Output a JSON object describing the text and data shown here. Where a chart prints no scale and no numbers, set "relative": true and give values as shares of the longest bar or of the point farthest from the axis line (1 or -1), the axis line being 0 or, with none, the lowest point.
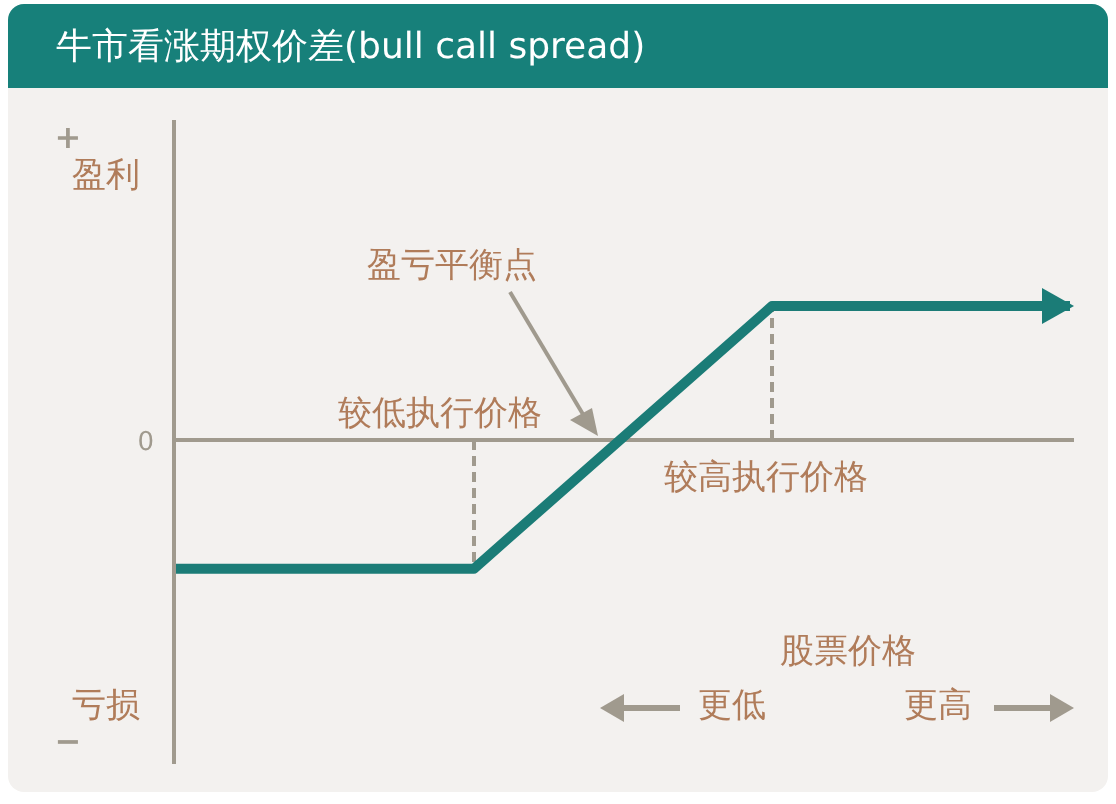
{
  "chart_data": {
    "type": "line",
    "title": "牛市看涨期权价差(bull call spread)",
    "relative": true,
    "xlabel": "股票价格",
    "categories": [
      null,
      null,
      null,
      null
    ],
    "series": [
      {
        "color": "#1b7c77",
        "values": [
          -0.96,
          -0.96,
          1,
          1
        ]
      }
    ],
    "annotations": [
      "+",
      "盈利",
      "亏损",
      "−",
      "0",
      "盈亏平衡点",
      "更低",
      "更高",
      "较低执行价格",
      "较高执行价格"
    ],
    "marker": "none",
    "line_style": "solid"
  }
}
